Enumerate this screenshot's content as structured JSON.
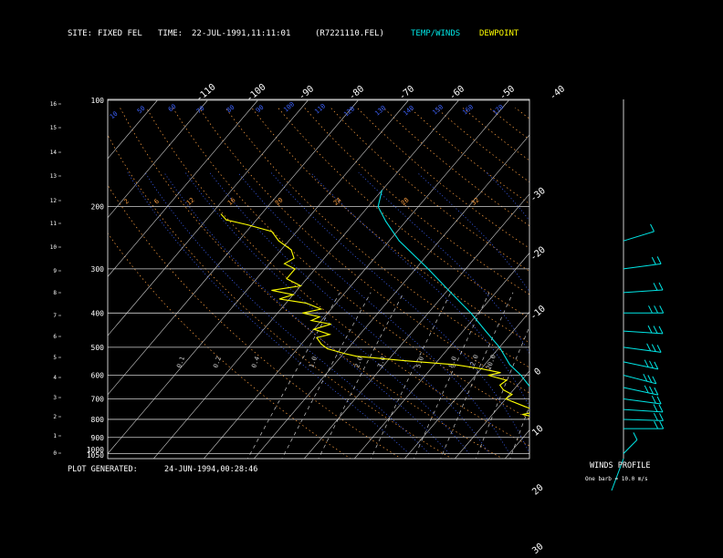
{
  "header": {
    "site_label": "SITE:",
    "site_value": "FIXED FEL",
    "time_label": "TIME:",
    "time_value": "22-JUL-1991,11:11:01",
    "file_name": "(R7221110.FEL)",
    "legend_temp": "TEMP/WINDS",
    "legend_dew": "DEWPOINT"
  },
  "footer": {
    "generated_label": "PLOT GENERATED:",
    "generated_value": "24-JUN-1994,00:28:46",
    "winds_title": "WINDS PROFILE",
    "barb_note": "One barb = 10.0 m/s"
  },
  "colors": {
    "background": "#000000",
    "axes": "#ffffff",
    "isobar": "#cfcfcf",
    "isotherm": "#cfcfcf",
    "dry_adiabat": "#ffa040",
    "moist_adiabat": "#3e63ff",
    "mixing_ratio": "#c8c8c8",
    "temperature": "#00e5e5",
    "dewpoint": "#ffff00",
    "winds": "#00e5e5",
    "legend_temp": "#00e5e5",
    "legend_dew": "#ffff00"
  },
  "chart_data": {
    "type": "line",
    "subtype": "skew-T log-p sounding",
    "pressure_labels": [
      "100",
      "200",
      "300",
      "400",
      "500",
      "600",
      "700",
      "800",
      "900",
      "1000",
      "1050"
    ],
    "height_labels": [
      "0",
      "1",
      "2",
      "3",
      "4",
      "5",
      "6",
      "7",
      "8",
      "9",
      "10",
      "11",
      "12",
      "13",
      "14",
      "15",
      "16"
    ],
    "top_isotherm_labels": [
      "-110",
      "-100",
      "-90",
      "-80",
      "-70",
      "-60",
      "-50",
      "-40"
    ],
    "right_isotherm_labels": [
      "-30",
      "-20",
      "-10",
      "0",
      "10",
      "20",
      "30"
    ],
    "dry_adiabat_labels": [
      "2",
      "6",
      "12",
      "16",
      "20",
      "24",
      "28",
      "32"
    ],
    "moist_adiabat_labels": [
      "10",
      "50",
      "60",
      "70",
      "80",
      "90",
      "100",
      "110",
      "120",
      "130",
      "140",
      "150",
      "160",
      "170"
    ],
    "mixing_ratio_labels": [
      "0.1",
      "0.2",
      "0.4",
      "1.0",
      "2.0",
      "3.0",
      "5.0",
      "8.0",
      "12.0",
      "20.0"
    ],
    "isobars_hpa": [
      100,
      200,
      300,
      400,
      500,
      600,
      700,
      800,
      900,
      1000
    ],
    "grid": true,
    "series": [
      {
        "name": "TEMP/WINDS",
        "points": [
          {
            "p": 1000,
            "t": 32.0
          },
          {
            "p": 985,
            "t": 29.5
          },
          {
            "p": 960,
            "t": 26.0
          },
          {
            "p": 930,
            "t": 23.5
          },
          {
            "p": 900,
            "t": 21.5
          },
          {
            "p": 850,
            "t": 18.0
          },
          {
            "p": 800,
            "t": 14.5
          },
          {
            "p": 750,
            "t": 10.5
          },
          {
            "p": 700,
            "t": 7.5
          },
          {
            "p": 650,
            "t": 3.0
          },
          {
            "p": 600,
            "t": -1.0
          },
          {
            "p": 560,
            "t": -5.0
          },
          {
            "p": 500,
            "t": -10.0
          },
          {
            "p": 450,
            "t": -15.5
          },
          {
            "p": 400,
            "t": -21.5
          },
          {
            "p": 350,
            "t": -29.0
          },
          {
            "p": 300,
            "t": -37.5
          },
          {
            "p": 250,
            "t": -48.0
          },
          {
            "p": 220,
            "t": -54.0
          },
          {
            "p": 200,
            "t": -58.0
          },
          {
            "p": 180,
            "t": -60.0
          }
        ]
      },
      {
        "name": "DEWPOINT",
        "points": [
          {
            "p": 1000,
            "t": 28.0
          },
          {
            "p": 985,
            "t": 27.0
          },
          {
            "p": 950,
            "t": 22.0
          },
          {
            "p": 900,
            "t": 19.0
          },
          {
            "p": 850,
            "t": 16.0
          },
          {
            "p": 800,
            "t": 11.5
          },
          {
            "p": 775,
            "t": 6.0
          },
          {
            "p": 760,
            "t": 8.5
          },
          {
            "p": 735,
            "t": 5.0
          },
          {
            "p": 700,
            "t": 0.0
          },
          {
            "p": 680,
            "t": 0.5
          },
          {
            "p": 660,
            "t": -2.0
          },
          {
            "p": 640,
            "t": -3.5
          },
          {
            "p": 620,
            "t": -3.0
          },
          {
            "p": 600,
            "t": -7.5
          },
          {
            "p": 590,
            "t": -5.5
          },
          {
            "p": 575,
            "t": -10.0
          },
          {
            "p": 560,
            "t": -16.0
          },
          {
            "p": 545,
            "t": -27.0
          },
          {
            "p": 530,
            "t": -37.0
          },
          {
            "p": 520,
            "t": -40.0
          },
          {
            "p": 505,
            "t": -44.0
          },
          {
            "p": 490,
            "t": -46.0
          },
          {
            "p": 470,
            "t": -48.0
          },
          {
            "p": 460,
            "t": -46.0
          },
          {
            "p": 445,
            "t": -50.0
          },
          {
            "p": 430,
            "t": -47.5
          },
          {
            "p": 420,
            "t": -52.0
          },
          {
            "p": 410,
            "t": -51.0
          },
          {
            "p": 400,
            "t": -55.0
          },
          {
            "p": 390,
            "t": -52.0
          },
          {
            "p": 375,
            "t": -56.0
          },
          {
            "p": 365,
            "t": -62.0
          },
          {
            "p": 355,
            "t": -60.0
          },
          {
            "p": 345,
            "t": -65.0
          },
          {
            "p": 335,
            "t": -60.0
          },
          {
            "p": 320,
            "t": -64.0
          },
          {
            "p": 300,
            "t": -64.0
          },
          {
            "p": 290,
            "t": -67.0
          },
          {
            "p": 280,
            "t": -66.0
          },
          {
            "p": 265,
            "t": -68.0
          },
          {
            "p": 250,
            "t": -72.0
          },
          {
            "p": 235,
            "t": -75.0
          },
          {
            "p": 225,
            "t": -81.0
          },
          {
            "p": 218,
            "t": -86.0
          },
          {
            "p": 210,
            "t": -88.0
          }
        ]
      }
    ],
    "winds": [
      {
        "p": 1000,
        "speed_ms": 5,
        "dir_deg": 200
      },
      {
        "p": 850,
        "speed_ms": 15,
        "dir_deg": 270
      },
      {
        "p": 800,
        "speed_ms": 15,
        "dir_deg": 275
      },
      {
        "p": 750,
        "speed_ms": 15,
        "dir_deg": 280
      },
      {
        "p": 700,
        "speed_ms": 20,
        "dir_deg": 290
      },
      {
        "p": 650,
        "speed_ms": 25,
        "dir_deg": 300
      },
      {
        "p": 600,
        "speed_ms": 30,
        "dir_deg": 305
      },
      {
        "p": 550,
        "speed_ms": 30,
        "dir_deg": 300
      },
      {
        "p": 500,
        "speed_ms": 25,
        "dir_deg": 290
      },
      {
        "p": 450,
        "speed_ms": 25,
        "dir_deg": 280
      },
      {
        "p": 400,
        "speed_ms": 30,
        "dir_deg": 270
      },
      {
        "p": 350,
        "speed_ms": 20,
        "dir_deg": 260
      },
      {
        "p": 300,
        "speed_ms": 15,
        "dir_deg": 250
      },
      {
        "p": 250,
        "speed_ms": 10,
        "dir_deg": 230
      }
    ]
  }
}
